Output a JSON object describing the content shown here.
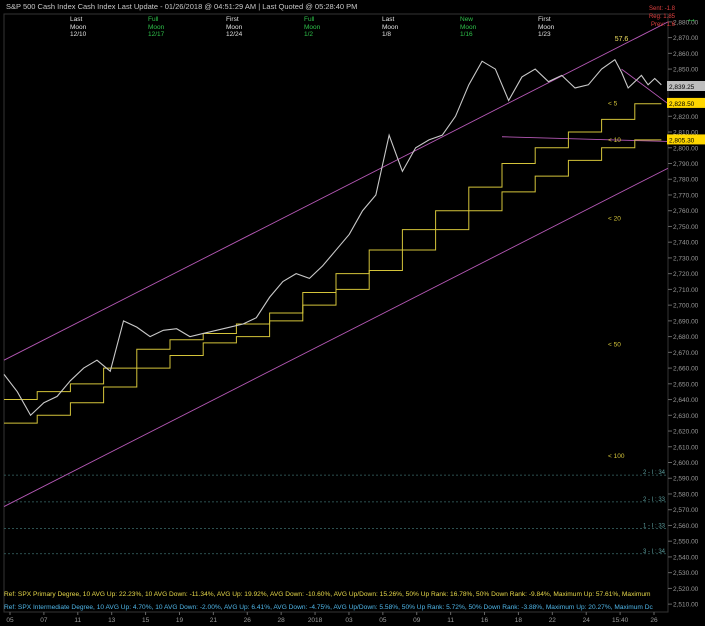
{
  "header": {
    "title": "S&P 500 Cash Index   Cash Index   Last Update - 01/26/2018 @ 04:51:29 AM | Last Quoted @ 05:28:40 PM",
    "moons": [
      {
        "type": "Last",
        "phase": "Moon",
        "date": "12/10",
        "color": "#e0e0e0"
      },
      {
        "type": "Full",
        "phase": "Moon",
        "date": "12/17",
        "color": "#2ec04a"
      },
      {
        "type": "First",
        "phase": "Moon",
        "date": "12/24",
        "color": "#e0e0e0"
      },
      {
        "type": "Full",
        "phase": "Moon",
        "date": "1/2",
        "color": "#2ec04a"
      },
      {
        "type": "Last",
        "phase": "Moon",
        "date": "1/8",
        "color": "#e0e0e0"
      },
      {
        "type": "New",
        "phase": "Moon",
        "date": "1/16",
        "color": "#2ec04a"
      },
      {
        "type": "First",
        "phase": "Moon",
        "date": "1/23",
        "color": "#e0e0e0"
      }
    ],
    "top_right": [
      "Sent: -1.8",
      "Reg: 1.85",
      "Prev: 1.6"
    ]
  },
  "footer": {
    "line1": "Ref: SPX Primary Degree, 10 AVG Up: 22.23%, 10 AVG Down: -11.34%, AVG Up: 19.92%, AVG Down: -10.60%, AVG Up/Down: 15.26%, 50%  Up Rank: 16.78%, 50% Down Rank: -9.84%, Maximum Up: 57.61%, Maximum",
    "line2": "Ref: SPX Intermediate Degree, 10 AVG Up: 4.70%, 10 AVG Down: -2.00%, AVG Up: 6.41%, AVG Down: -4.75%, AVG Up/Down: 5.58%, 50%  Up Rank: 5.72%, 50% Down Rank: -3.88%, Maximum Up: 20.27%, Maximum Dc"
  },
  "colors": {
    "background": "#000000",
    "price": "#c9c9c9",
    "staircase": "#d4c43a",
    "channel": "#b558b5",
    "axis_text": "#9a9a9a",
    "last_label": "#ffd700"
  },
  "chart_data": {
    "type": "line",
    "title": "",
    "ylim": [
      2505,
      2885
    ],
    "y_ticks": [
      2510,
      2520,
      2530,
      2540,
      2550,
      2560,
      2570,
      2580,
      2590,
      2600,
      2610,
      2620,
      2630,
      2640,
      2650,
      2660,
      2670,
      2680,
      2690,
      2700,
      2710,
      2720,
      2730,
      2740,
      2750,
      2760,
      2770,
      2780,
      2790,
      2800,
      2810,
      2820,
      2830,
      2840,
      2850,
      2860,
      2870,
      2880
    ],
    "x_labels": [
      "05",
      "07",
      "11",
      "13",
      "15",
      "19",
      "21",
      "26",
      "28",
      "2018",
      "03",
      "05",
      "09",
      "11",
      "16",
      "18",
      "22",
      "24",
      "15:40",
      "26"
    ],
    "xlim": [
      0,
      100
    ],
    "series": [
      {
        "x": [
          0,
          2,
          4,
          6,
          8,
          10,
          12,
          14,
          16,
          18,
          20,
          22,
          24,
          26,
          28,
          30,
          32,
          34,
          36,
          38,
          40,
          42,
          44,
          46,
          48,
          50,
          52,
          54,
          56,
          58,
          60,
          62,
          64,
          66,
          68,
          70,
          72,
          74,
          76,
          78,
          80,
          82,
          84,
          86,
          88,
          90,
          92,
          93,
          94,
          95,
          96,
          97,
          98,
          99
        ],
        "values": [
          2656,
          2645,
          2630,
          2638,
          2642,
          2652,
          2660,
          2665,
          2658,
          2690,
          2686,
          2680,
          2684,
          2685,
          2680,
          2682,
          2684,
          2686,
          2688,
          2692,
          2705,
          2715,
          2720,
          2717,
          2725,
          2735,
          2745,
          2760,
          2770,
          2808,
          2785,
          2800,
          2805,
          2808,
          2820,
          2840,
          2855,
          2850,
          2830,
          2845,
          2850,
          2842,
          2846,
          2838,
          2840,
          2850,
          2856,
          2848,
          2838,
          2842,
          2846,
          2840,
          2844,
          2840
        ]
      }
    ],
    "peak_label": "57.6",
    "last_price": "2,839.25",
    "levels": [
      {
        "label": "2,828.50",
        "value": 2828.5
      },
      {
        "label": "2,805.30",
        "value": 2805.3
      }
    ],
    "avg_labels": [
      {
        "label": "< 5",
        "value": 2828
      },
      {
        "label": "< 10",
        "value": 2805
      },
      {
        "label": "< 20",
        "value": 2755
      },
      {
        "label": "< 50",
        "value": 2675
      },
      {
        "label": "< 100",
        "value": 2604
      }
    ],
    "channel_lines": [
      {
        "x": [
          0,
          100
        ],
        "values": [
          2665,
          2880
        ]
      },
      {
        "x": [
          0,
          100
        ],
        "values": [
          2572,
          2787
        ]
      },
      {
        "x": [
          75,
          100
        ],
        "values": [
          2807,
          2804
        ]
      },
      {
        "x": [
          93,
          100
        ],
        "values": [
          2850,
          2828
        ]
      }
    ],
    "staircases": [
      {
        "name": "",
        "x": [
          0,
          5,
          10,
          15,
          20,
          25,
          30,
          35,
          40,
          45,
          50,
          55,
          60,
          65,
          70,
          75,
          80,
          85,
          90,
          95,
          99
        ],
        "values": [
          2640,
          2645,
          2650,
          2660,
          2672,
          2678,
          2682,
          2688,
          2695,
          2708,
          2720,
          2735,
          2748,
          2760,
          2775,
          2790,
          2800,
          2810,
          2818,
          2828,
          2828
        ]
      },
      {
        "name": "",
        "x": [
          0,
          5,
          10,
          15,
          20,
          25,
          30,
          35,
          40,
          45,
          50,
          55,
          60,
          65,
          70,
          75,
          80,
          85,
          90,
          95,
          99
        ],
        "values": [
          2625,
          2630,
          2638,
          2648,
          2660,
          2668,
          2676,
          2680,
          2690,
          2700,
          2710,
          2722,
          2735,
          2748,
          2760,
          2772,
          2782,
          2792,
          2800,
          2805,
          2805
        ]
      }
    ],
    "guide_lines": [
      {
        "label": "2 - I : 34",
        "value": 2592
      },
      {
        "label": "2 - I : 33",
        "value": 2575
      },
      {
        "label": "1 - I : 33",
        "value": 2558
      },
      {
        "label": "3 - I : 34",
        "value": 2542
      }
    ]
  }
}
